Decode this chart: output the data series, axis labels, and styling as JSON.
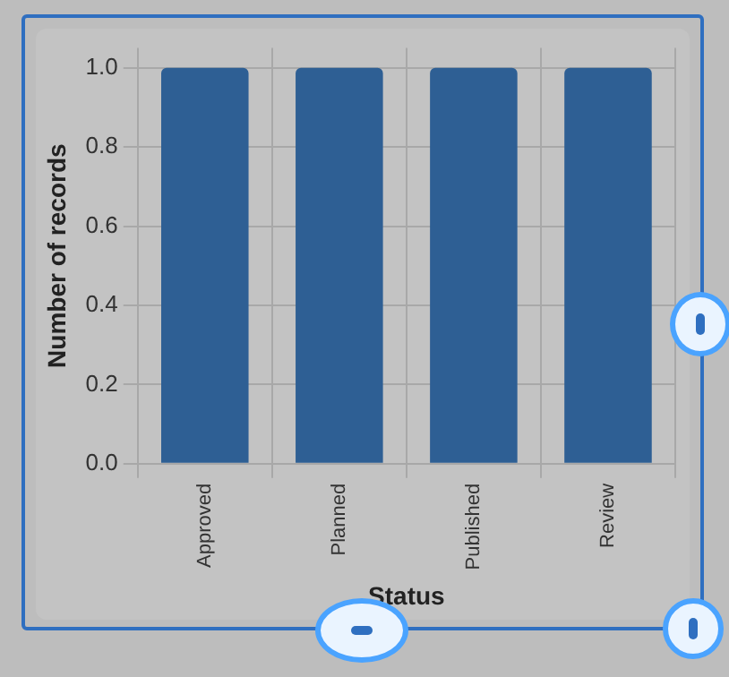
{
  "chart_data": {
    "type": "bar",
    "xlabel": "Status",
    "ylabel": "Number of records",
    "categories": [
      "Approved",
      "Planned",
      "Published",
      "Review"
    ],
    "values": [
      1.0,
      1.0,
      1.0,
      1.0
    ],
    "color": "#2e5f94",
    "ylim": [
      0,
      1.05
    ],
    "yticks": [
      {
        "value": 0,
        "label": "0.0"
      },
      {
        "value": 0.2,
        "label": "0.2"
      },
      {
        "value": 0.4,
        "label": "0.4"
      },
      {
        "value": 0.6,
        "label": "0.6"
      },
      {
        "value": 0.8,
        "label": "0.8"
      },
      {
        "value": 1.0,
        "label": "1.0"
      }
    ],
    "grid": true
  }
}
